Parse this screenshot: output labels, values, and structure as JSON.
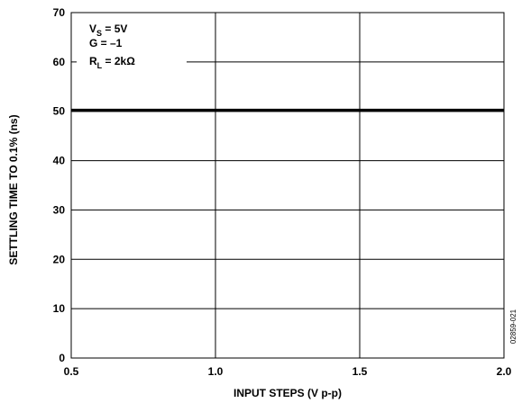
{
  "chart_data": {
    "type": "line",
    "title": "",
    "xlabel": "INPUT STEPS (V p-p)",
    "ylabel": "SETTLING TIME TO 0.1% (ns)",
    "xlim": [
      0.5,
      2.0
    ],
    "ylim": [
      0,
      70
    ],
    "x_ticks": [
      0.5,
      1.0,
      1.5,
      2.0
    ],
    "x_tick_labels": [
      "0.5",
      "1.0",
      "1.5",
      "2.0"
    ],
    "y_ticks": [
      0,
      10,
      20,
      30,
      40,
      50,
      60,
      70
    ],
    "y_tick_labels": [
      "0",
      "10",
      "20",
      "30",
      "40",
      "50",
      "60",
      "70"
    ],
    "grid": true,
    "series": [
      {
        "x": [
          0.5,
          2.0
        ],
        "y": [
          50.2,
          50.2
        ]
      }
    ],
    "annotations": {
      "vs": {
        "main": "V",
        "sub": "S",
        "rest": " = 5V"
      },
      "gain": "G = –1",
      "rl": {
        "main": "R",
        "sub": "L",
        "rest": " = 2kΩ"
      }
    },
    "figure_id": "02859-021"
  }
}
